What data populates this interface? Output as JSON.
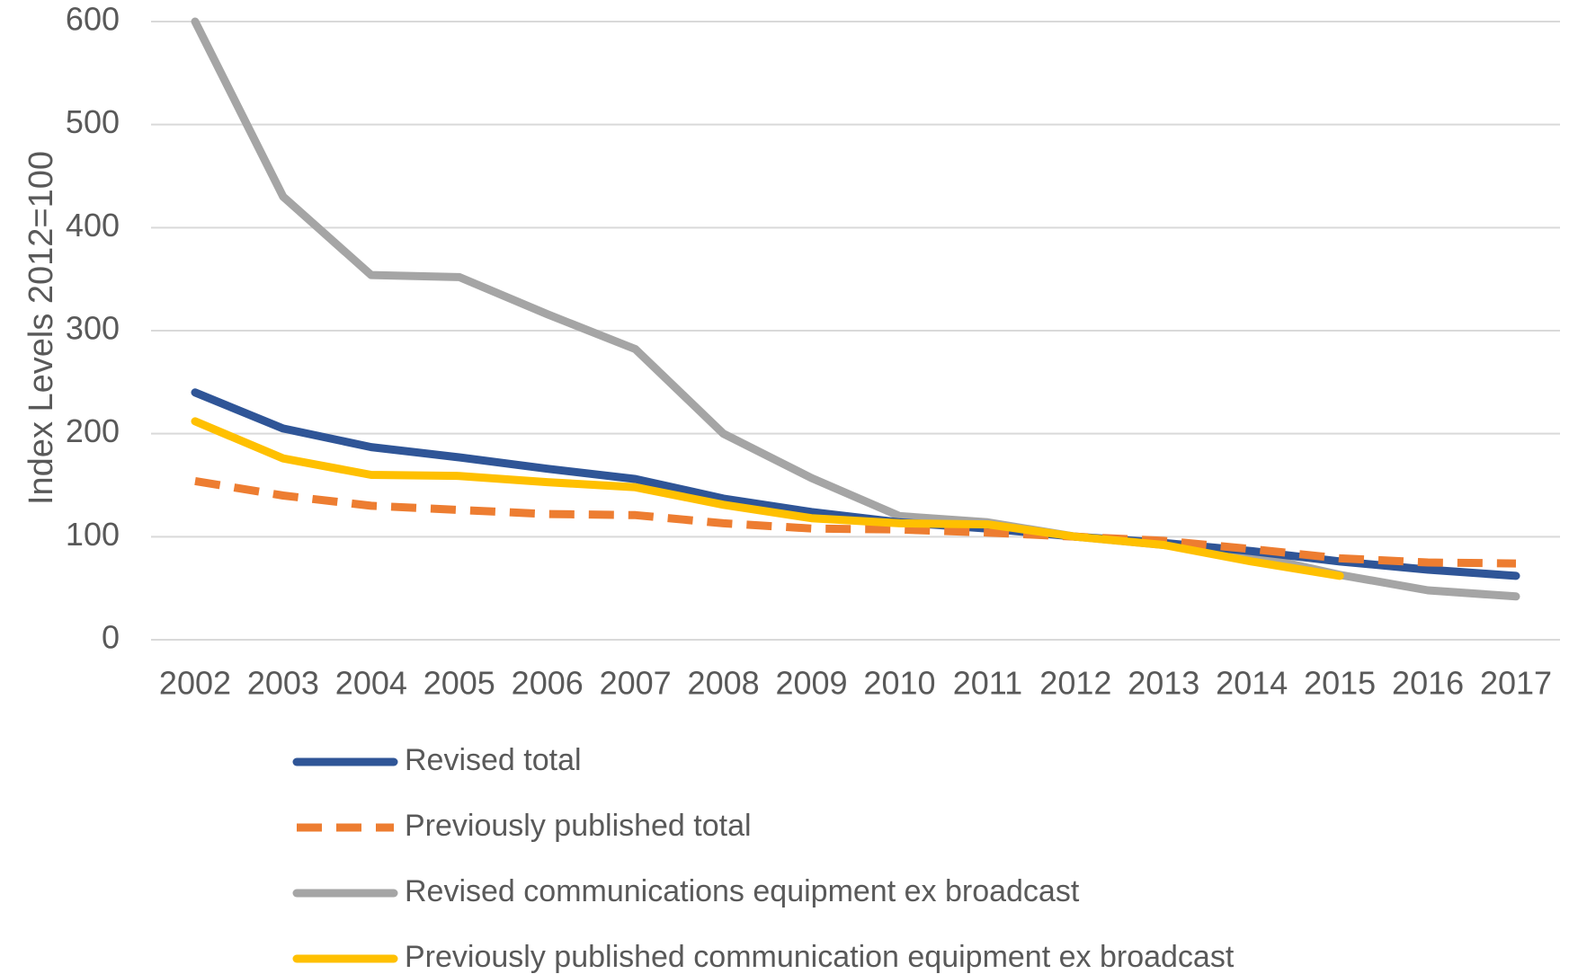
{
  "chart_data": {
    "type": "line",
    "title": "",
    "xlabel": "",
    "ylabel": "Index Levels 2012=100",
    "ylim": [
      0,
      600
    ],
    "yticks": [
      0,
      100,
      200,
      300,
      400,
      500,
      600
    ],
    "grid": true,
    "legend_position": "bottom-left",
    "x": [
      "2002",
      "2003",
      "2004",
      "2005",
      "2006",
      "2007",
      "2008",
      "2009",
      "2010",
      "2011",
      "2012",
      "2013",
      "2014",
      "2015",
      "2016",
      "2017"
    ],
    "series": [
      {
        "name": "Revised total",
        "color": "#2F5597",
        "style": "solid",
        "values": [
          240,
          205,
          187,
          177,
          166,
          156,
          137,
          124,
          114,
          108,
          100,
          94,
          86,
          76,
          68,
          62
        ]
      },
      {
        "name": "Previously published total",
        "color": "#ED7D31",
        "style": "dashed",
        "values": [
          154,
          140,
          130,
          126,
          122,
          121,
          113,
          108,
          107,
          104,
          100,
          96,
          88,
          79,
          75,
          74
        ]
      },
      {
        "name": "Revised communications equipment ex broadcast",
        "color": "#A5A5A5",
        "style": "solid",
        "values": [
          600,
          430,
          354,
          352,
          316,
          282,
          200,
          157,
          120,
          114,
          100,
          92,
          82,
          63,
          48,
          42
        ]
      },
      {
        "name": "Previously published communication equipment ex broadcast",
        "color": "#FFC000",
        "style": "solid",
        "values": [
          212,
          176,
          160,
          159,
          153,
          148,
          131,
          118,
          113,
          112,
          100,
          92,
          76,
          62,
          null,
          null
        ]
      }
    ]
  }
}
